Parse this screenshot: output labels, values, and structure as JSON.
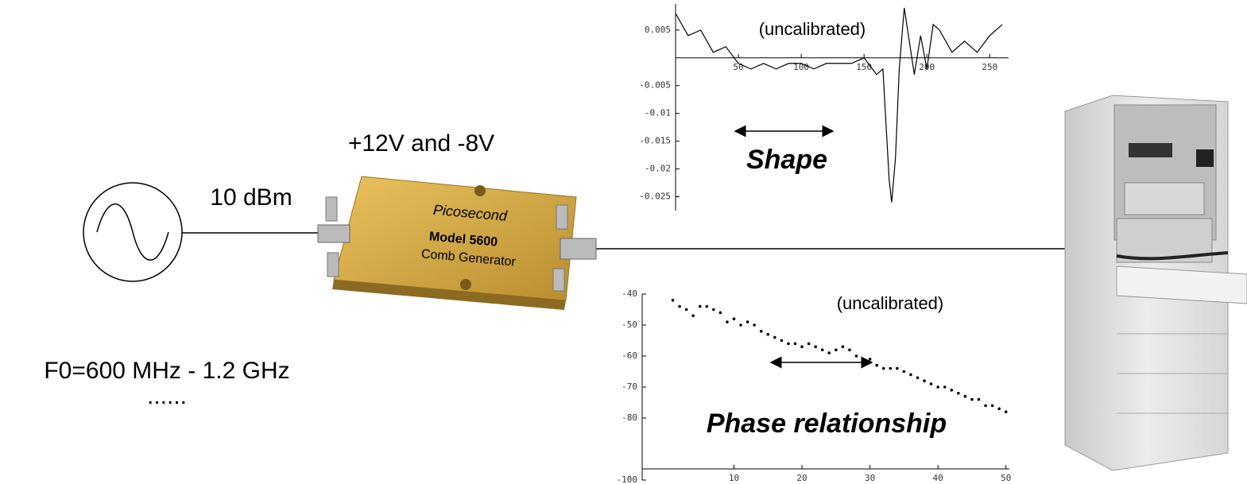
{
  "labels": {
    "power": "+12V and -8V",
    "input_level": "10 dBm",
    "frequency": "F0=600 MHz - 1.2 GHz",
    "ellipsis": "......",
    "device": {
      "brand": "Picosecond",
      "model": "Model 5600",
      "name": "Comb Generator"
    }
  },
  "chart_data": [
    {
      "type": "line",
      "annotations": [
        "(uncalibrated)",
        "Shape"
      ],
      "x": [
        0,
        10,
        20,
        30,
        40,
        50,
        60,
        70,
        80,
        90,
        100,
        110,
        120,
        130,
        140,
        150,
        160,
        165,
        170,
        172,
        175,
        178,
        182,
        186,
        190,
        195,
        200,
        205,
        210,
        220,
        230,
        240,
        250,
        260
      ],
      "series": [
        {
          "color": "#000000",
          "values": [
            0.008,
            0.004,
            0.005,
            0.001,
            0.002,
            -0.001,
            -0.002,
            -0.001,
            -0.002,
            -0.001,
            -0.001,
            -0.002,
            -0.001,
            -0.001,
            -0.001,
            0.0,
            -0.003,
            -0.002,
            -0.022,
            -0.026,
            -0.018,
            -0.002,
            0.009,
            0.003,
            -0.003,
            0.004,
            -0.002,
            0.006,
            0.005,
            0.001,
            0.003,
            0.001,
            0.004,
            0.006
          ]
        }
      ],
      "xlim": [
        0,
        265
      ],
      "ylim": [
        -0.0275,
        0.0097
      ],
      "xticks": [
        50,
        100,
        150,
        200,
        250
      ],
      "yticks": [
        0.005,
        -0.005,
        -0.01,
        -0.015,
        -0.02,
        -0.025
      ]
    },
    {
      "type": "scatter",
      "annotations": [
        "(uncalibrated)",
        "Phase relationship"
      ],
      "x": [
        1,
        2,
        3,
        4,
        5,
        6,
        7,
        8,
        9,
        10,
        11,
        12,
        13,
        14,
        15,
        16,
        17,
        18,
        19,
        20,
        21,
        22,
        23,
        24,
        25,
        26,
        27,
        28,
        29,
        30,
        31,
        32,
        33,
        34,
        35,
        36,
        37,
        38,
        39,
        40,
        41,
        42,
        43,
        44,
        45,
        46,
        47,
        48,
        49,
        50
      ],
      "series": [
        {
          "color": "#000000",
          "values": [
            -42,
            -44,
            -45,
            -47,
            -44,
            -44,
            -45,
            -46,
            -49,
            -48,
            -50,
            -49,
            -50,
            -52,
            -53,
            -54,
            -55,
            -56,
            -56,
            -57,
            -56,
            -57,
            -58,
            -59,
            -58,
            -57,
            -58,
            -60,
            -61,
            -61,
            -63,
            -64,
            -64,
            -64,
            -65,
            -66,
            -67,
            -68,
            -69,
            -70,
            -70,
            -71,
            -72,
            -73,
            -74,
            -74,
            -76,
            -76,
            -77,
            -78
          ]
        }
      ],
      "xlim": [
        -3.5,
        50.5
      ],
      "ylim": [
        -100,
        -40
      ],
      "xticks": [
        10,
        20,
        30,
        40,
        50
      ],
      "yticks": [
        -40,
        -50,
        -60,
        -70,
        -80,
        -100
      ]
    }
  ]
}
